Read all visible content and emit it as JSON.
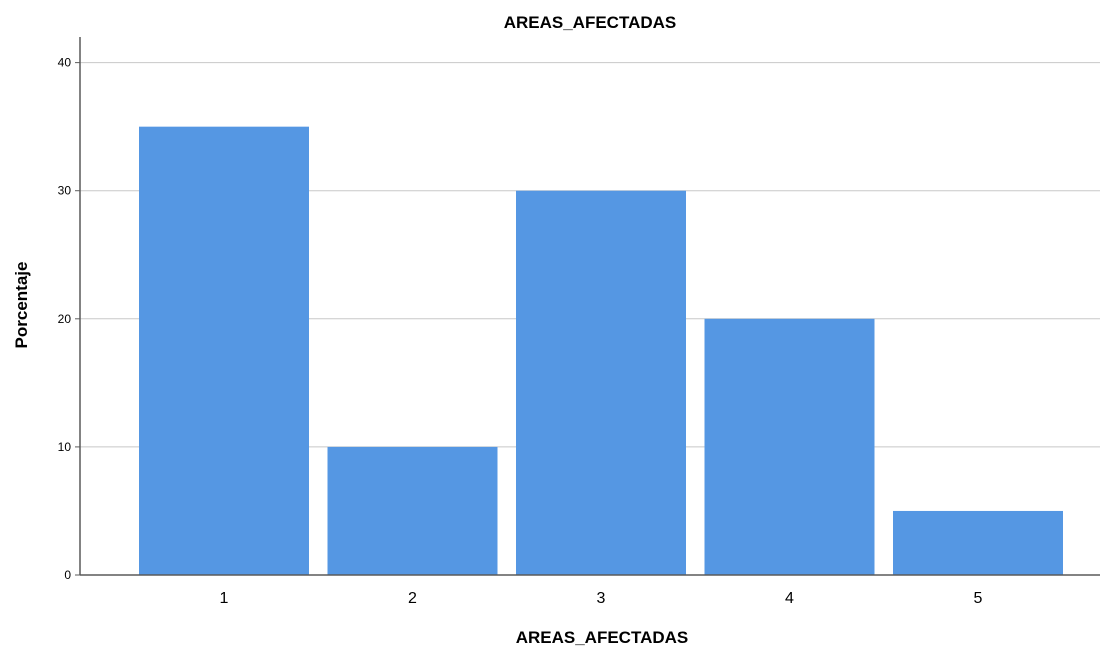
{
  "chart_data": {
    "type": "bar",
    "title": "AREAS_AFECTADAS",
    "xlabel": "AREAS_AFECTADAS",
    "ylabel": "Porcentaje",
    "categories": [
      "1",
      "2",
      "3",
      "4",
      "5"
    ],
    "values": [
      35,
      10,
      30,
      20,
      5
    ],
    "ylim": [
      0,
      42
    ],
    "yticks": [
      "0",
      "10",
      "20",
      "30",
      "40"
    ],
    "grid": true,
    "bar_color": "#5597e3"
  }
}
